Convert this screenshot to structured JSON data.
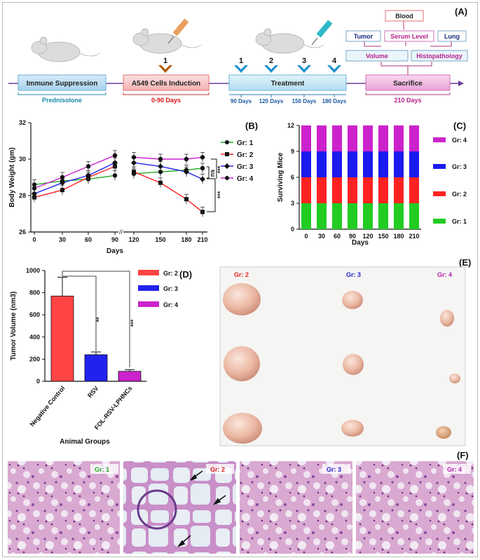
{
  "figure": {
    "panel_labels": {
      "a": "(A)",
      "b": "(B)",
      "c": "(C)",
      "d": "(D)",
      "e": "(E)",
      "f": "(F)"
    },
    "timeline": {
      "immune": {
        "title": "Immune Suppression",
        "sub": "Prednisolone"
      },
      "induction": {
        "title": "A549 Cells Induction",
        "sub": "0-90 Days",
        "marker": "1"
      },
      "treatment": {
        "title": "Treatment",
        "markers": [
          "1",
          "2",
          "3",
          "4"
        ],
        "days": [
          "90 Days",
          "120 Days",
          "150 Days",
          "180 Days"
        ]
      },
      "sacrifice": {
        "title": "Sacrifice",
        "sub": "210 Days"
      },
      "outcomes": {
        "blood": "Blood",
        "tumor": "Tumor",
        "serum": "Serum Level",
        "lung": "Lung",
        "volume": "Volume",
        "histo": "Histopathology"
      }
    },
    "tumor_photo": {
      "labels": [
        "Gr: 2",
        "Gr: 3",
        "Gr: 4"
      ]
    },
    "histology": {
      "labels": [
        "Gr: 1",
        "Gr: 2",
        "Gr: 3",
        "Gr: 4"
      ]
    },
    "colors": {
      "gr1": "#22aa22",
      "gr2": "#ff2222",
      "gr3": "#2222ee",
      "gr4": "#cc22cc"
    }
  },
  "chart_data": [
    {
      "id": "body-weight",
      "type": "line",
      "xlabel": "Days",
      "ylabel": "Body Weight (gm)",
      "x": [
        0,
        30,
        60,
        90,
        120,
        150,
        180,
        210
      ],
      "x_ticks": [
        "0",
        "30",
        "60",
        "90",
        "120",
        "150",
        "180",
        "210"
      ],
      "ylim": [
        26,
        32
      ],
      "y_ticks": [
        "26",
        "28",
        "30",
        "32"
      ],
      "series": [
        {
          "name": "Gr: 1",
          "color": "#22aa22",
          "marker": "circle",
          "values": [
            28.6,
            28.8,
            28.9,
            29.1,
            29.2,
            29.3,
            29.4,
            29.5
          ]
        },
        {
          "name": "Gr: 2",
          "color": "#ff2222",
          "marker": "square",
          "values": [
            27.9,
            28.3,
            29.0,
            29.6,
            29.3,
            28.7,
            27.8,
            27.1
          ]
        },
        {
          "name": "Gr: 3",
          "color": "#2222ee",
          "marker": "diamond",
          "values": [
            28.1,
            28.7,
            29.1,
            29.8,
            29.8,
            29.6,
            29.3,
            28.9
          ]
        },
        {
          "name": "Gr: 4",
          "color": "#cc22cc",
          "marker": "circle",
          "values": [
            28.4,
            29.0,
            29.6,
            30.2,
            30.1,
            30.0,
            30.0,
            30.1
          ]
        }
      ],
      "annotations": [
        "ns",
        "***",
        "***"
      ]
    },
    {
      "id": "surviving-mice",
      "type": "bar",
      "stacked": true,
      "xlabel": "Days",
      "ylabel": "Surviving Mice",
      "categories": [
        "0",
        "30",
        "60",
        "90",
        "120",
        "150",
        "180",
        "210"
      ],
      "ylim": [
        0,
        12
      ],
      "y_ticks": [
        "0",
        "3",
        "6",
        "9",
        "12"
      ],
      "series": [
        {
          "name": "Gr: 1",
          "color": "#22cc22",
          "values": [
            3,
            3,
            3,
            3,
            3,
            3,
            3,
            3
          ]
        },
        {
          "name": "Gr: 2",
          "color": "#ff2222",
          "values": [
            3,
            3,
            3,
            3,
            3,
            3,
            3,
            3
          ]
        },
        {
          "name": "Gr: 3",
          "color": "#1a1aee",
          "values": [
            3,
            3,
            3,
            3,
            3,
            3,
            3,
            3
          ]
        },
        {
          "name": "Gr: 4",
          "color": "#cc22cc",
          "values": [
            3,
            3,
            3,
            3,
            3,
            3,
            3,
            3
          ]
        }
      ]
    },
    {
      "id": "tumor-volume",
      "type": "bar",
      "xlabel": "Animal Groups",
      "ylabel": "Tumor Volume (nm3)",
      "categories": [
        "Negative Control",
        "RSV",
        "FOL-RSV-LPHNCs"
      ],
      "values": [
        770,
        240,
        90
      ],
      "errors": [
        170,
        25,
        15
      ],
      "colors": [
        "#ff4444",
        "#2222ee",
        "#cc22cc"
      ],
      "ylim": [
        0,
        1000
      ],
      "y_ticks": [
        "0",
        "200",
        "400",
        "600",
        "800",
        "1000"
      ],
      "legend": [
        {
          "name": "Gr: 2",
          "color": "#ff4444"
        },
        {
          "name": "Gr: 3",
          "color": "#2222ee"
        },
        {
          "name": "Gr: 4",
          "color": "#cc22cc"
        }
      ],
      "significance": [
        "**",
        "***"
      ]
    }
  ]
}
